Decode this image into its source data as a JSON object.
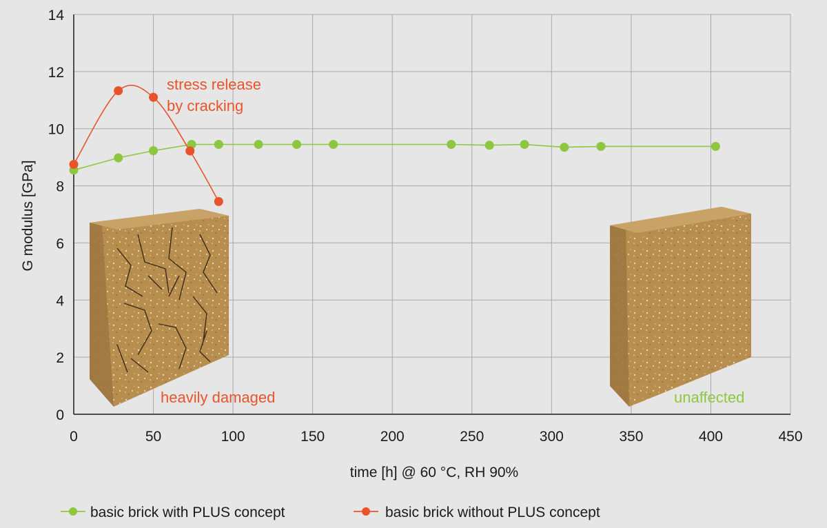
{
  "chart_data": {
    "type": "line",
    "xlabel": "time [h] @ 60 °C, RH 90%",
    "ylabel": "G modulus [GPa]",
    "xlim": [
      0,
      450
    ],
    "ylim": [
      0,
      14
    ],
    "xticks": [
      0,
      50,
      100,
      150,
      200,
      250,
      300,
      350,
      400,
      450
    ],
    "yticks": [
      0,
      2,
      4,
      6,
      8,
      10,
      12,
      14
    ],
    "grid": true,
    "legend_position": "bottom",
    "series": [
      {
        "name": "basic brick with PLUS concept",
        "color": "#8dc63f",
        "x": [
          0,
          28,
          50,
          74,
          91,
          116,
          140,
          163,
          237,
          261,
          283,
          308,
          331,
          403
        ],
        "y": [
          8.55,
          8.98,
          9.23,
          9.45,
          9.45,
          9.45,
          9.45,
          9.45,
          9.45,
          9.42,
          9.45,
          9.35,
          9.38,
          9.38
        ]
      },
      {
        "name": "basic brick without PLUS concept",
        "color": "#e8542a",
        "x": [
          0,
          28,
          50,
          73,
          91
        ],
        "y": [
          8.75,
          11.33,
          11.1,
          9.22,
          7.45
        ]
      }
    ],
    "annotations": [
      {
        "text": "stress release",
        "color": "#e8542a"
      },
      {
        "text": "by cracking",
        "color": "#e8542a"
      },
      {
        "text": "heavily damaged",
        "color": "#e8542a"
      },
      {
        "text": "unaffected",
        "color": "#8dc63f"
      }
    ]
  }
}
